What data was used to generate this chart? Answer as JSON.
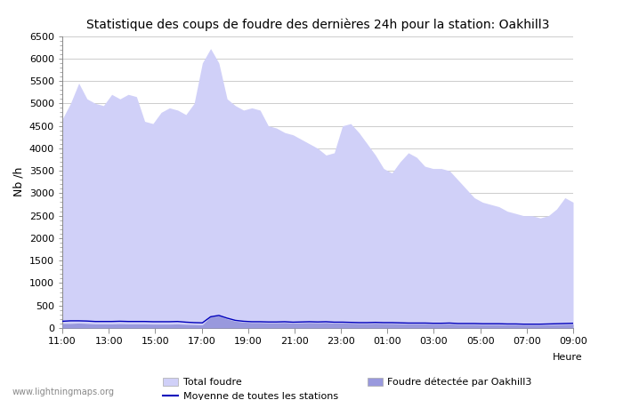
{
  "title": "Statistique des coups de foudre des dernières 24h pour la station: Oakhill3",
  "ylabel": "Nb /h",
  "xlabel_legend": "Heure",
  "watermark": "www.lightningmaps.org",
  "x_ticks": [
    "11:00",
    "13:00",
    "15:00",
    "17:00",
    "19:00",
    "21:00",
    "23:00",
    "01:00",
    "03:00",
    "05:00",
    "07:00",
    "09:00"
  ],
  "ylim": [
    0,
    6500
  ],
  "yticks": [
    0,
    500,
    1000,
    1500,
    2000,
    2500,
    3000,
    3500,
    4000,
    4500,
    5000,
    5500,
    6000,
    6500
  ],
  "total_foudre_color": "#d0d0f8",
  "local_foudre_color": "#9999dd",
  "moyenne_color": "#0000bb",
  "bg_color": "#ffffff",
  "grid_color": "#cccccc",
  "total_foudre": [
    4650,
    5000,
    5450,
    5100,
    5000,
    4950,
    5200,
    5100,
    5200,
    5150,
    4600,
    4550,
    4800,
    4900,
    4850,
    4750,
    5000,
    5900,
    6220,
    5900,
    5100,
    4950,
    4850,
    4900,
    4850,
    4500,
    4450,
    4350,
    4300,
    4200,
    4100,
    4000,
    3850,
    3900,
    4500,
    4550,
    4350,
    4100,
    3850,
    3550,
    3450,
    3700,
    3900,
    3800,
    3600,
    3550,
    3550,
    3500,
    3300,
    3100,
    2900,
    2800,
    2750,
    2700,
    2600,
    2550,
    2500,
    2500,
    2450,
    2500,
    2650,
    2900,
    2800
  ],
  "local_foudre": [
    100,
    100,
    110,
    100,
    90,
    90,
    90,
    95,
    90,
    90,
    90,
    85,
    85,
    85,
    90,
    80,
    75,
    70,
    250,
    270,
    200,
    150,
    130,
    120,
    120,
    115,
    115,
    120,
    110,
    115,
    120,
    115,
    120,
    110,
    110,
    105,
    100,
    100,
    105,
    100,
    100,
    95,
    90,
    90,
    90,
    85,
    85,
    90,
    80,
    80,
    80,
    75,
    75,
    75,
    70,
    70,
    65,
    65,
    65,
    70,
    75,
    80,
    85
  ],
  "moyenne": [
    150,
    160,
    160,
    155,
    145,
    145,
    145,
    150,
    145,
    145,
    145,
    140,
    140,
    140,
    145,
    130,
    120,
    115,
    250,
    280,
    220,
    170,
    150,
    140,
    140,
    135,
    135,
    140,
    130,
    135,
    140,
    135,
    140,
    130,
    130,
    125,
    120,
    120,
    125,
    120,
    120,
    115,
    110,
    110,
    110,
    105,
    105,
    110,
    100,
    100,
    100,
    95,
    95,
    95,
    90,
    90,
    85,
    85,
    85,
    90,
    95,
    100,
    105
  ],
  "n_points": 63
}
